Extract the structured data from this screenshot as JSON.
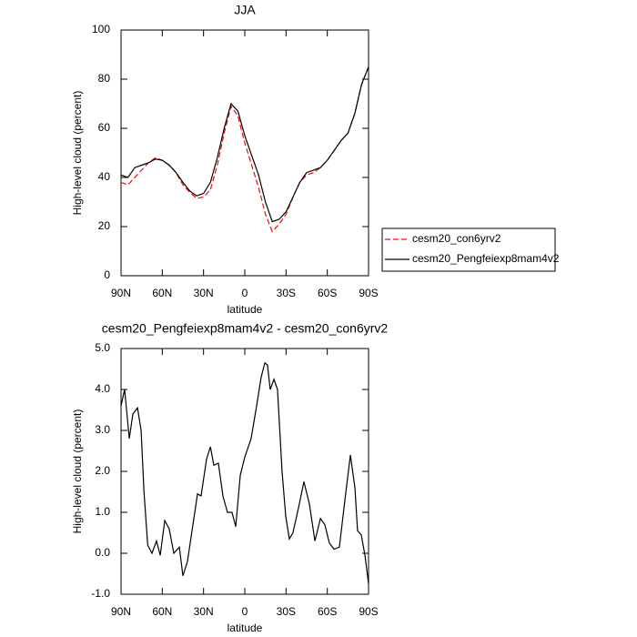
{
  "chart_data": [
    {
      "type": "line",
      "title": "JJA",
      "xlabel": "latitude",
      "ylabel": "High-level cloud (percent)",
      "x": [
        90,
        85,
        80,
        75,
        70,
        65,
        60,
        55,
        50,
        45,
        40,
        35,
        30,
        25,
        20,
        15,
        10,
        5,
        0,
        -5,
        -10,
        -15,
        -20,
        -25,
        -30,
        -35,
        -40,
        -45,
        -50,
        -55,
        -60,
        -65,
        -70,
        -75,
        -80,
        -85,
        -90
      ],
      "series": [
        {
          "name": "cesm20_con6yrv2",
          "color": "#ff0000",
          "dash": true,
          "values": [
            38,
            37,
            40,
            43,
            46,
            48,
            47,
            45,
            42,
            37,
            34,
            31.5,
            32,
            35,
            45,
            58,
            69,
            65,
            54,
            45,
            36,
            25,
            18,
            21,
            25,
            32,
            38,
            41,
            42,
            44,
            47,
            51,
            55,
            58,
            66,
            78,
            85
          ]
        },
        {
          "name": "cesm20_Pengfeiexp8mam4v2",
          "color": "#000000",
          "dash": false,
          "values": [
            41,
            40,
            44,
            45,
            46,
            47.5,
            47,
            45,
            42,
            38,
            34.5,
            32.5,
            33.5,
            38,
            48,
            60,
            70,
            67,
            57,
            49,
            41,
            30,
            22,
            23,
            26,
            32,
            38,
            42,
            43,
            44,
            47,
            51,
            55,
            58,
            66,
            78,
            85
          ]
        }
      ],
      "xlim": [
        90,
        -90
      ],
      "xticks": [
        {
          "value": 90,
          "label": "90N"
        },
        {
          "value": 60,
          "label": "60N"
        },
        {
          "value": 30,
          "label": "30N"
        },
        0,
        {
          "value": -30,
          "label": "30S"
        },
        {
          "value": -60,
          "label": "60S"
        },
        {
          "value": -90,
          "label": "90S"
        }
      ],
      "ylim": [
        0,
        100
      ],
      "yticks": [
        0,
        20,
        40,
        60,
        80,
        100
      ],
      "legend": "right"
    },
    {
      "type": "line",
      "title": "cesm20_Pengfeiexp8mam4v2 - cesm20_con6yrv2",
      "xlabel": "latitude",
      "ylabel": "High-level cloud (percent)",
      "x": [
        90,
        87.4,
        84,
        81.4,
        78,
        75.4,
        73.3,
        70.6,
        67.5,
        64.2,
        61.5,
        58.2,
        55,
        51.6,
        47.6,
        45,
        41.7,
        37.7,
        34.4,
        31.8,
        27.8,
        25,
        22.5,
        19.2,
        15.9,
        12.6,
        9.3,
        6.6,
        3.3,
        0,
        -4.6,
        -8.6,
        -11.9,
        -14.6,
        -16.5,
        -18.5,
        -21.2,
        -23.8,
        -27.1,
        -29.8,
        -32.4,
        -35,
        -39,
        -43,
        -47,
        -51,
        -55,
        -58.2,
        -61.5,
        -64.9,
        -68.8,
        -72.8,
        -76.8,
        -80.1,
        -82,
        -84.7,
        -87.4,
        -90
      ],
      "series": [
        {
          "color": "#000000",
          "dash": false,
          "values": [
            3.6,
            4.0,
            2.8,
            3.4,
            3.55,
            3.0,
            1.5,
            0.2,
            0.0,
            0.3,
            -0.05,
            0.8,
            0.6,
            0.0,
            0.15,
            -0.55,
            -0.2,
            0.7,
            1.45,
            1.4,
            2.3,
            2.6,
            2.15,
            2.2,
            1.4,
            1.0,
            1.0,
            0.65,
            1.9,
            2.35,
            2.8,
            3.6,
            4.3,
            4.65,
            4.6,
            4.0,
            4.25,
            4.0,
            2.0,
            0.9,
            0.35,
            0.5,
            1.1,
            1.75,
            1.2,
            0.3,
            0.85,
            0.7,
            0.25,
            0.1,
            0.15,
            1.3,
            2.4,
            1.6,
            0.55,
            0.45,
            -0.05,
            -0.75
          ]
        }
      ],
      "xlim": [
        90,
        -90
      ],
      "xticks": [
        {
          "value": 90,
          "label": "90N"
        },
        {
          "value": 60,
          "label": "60N"
        },
        {
          "value": 30,
          "label": "30N"
        },
        0,
        {
          "value": -30,
          "label": "30S"
        },
        {
          "value": -60,
          "label": "60S"
        },
        {
          "value": -90,
          "label": "90S"
        }
      ],
      "ylim": [
        -1,
        5
      ],
      "yticks": [
        {
          "value": -1,
          "label": "-1.0"
        },
        {
          "value": 0,
          "label": "0.0"
        },
        {
          "value": 1,
          "label": "1.0"
        },
        {
          "value": 2,
          "label": "2.0"
        },
        {
          "value": 3,
          "label": "3.0"
        },
        {
          "value": 4,
          "label": "4.0"
        },
        {
          "value": 5,
          "label": "5.0"
        }
      ]
    }
  ]
}
